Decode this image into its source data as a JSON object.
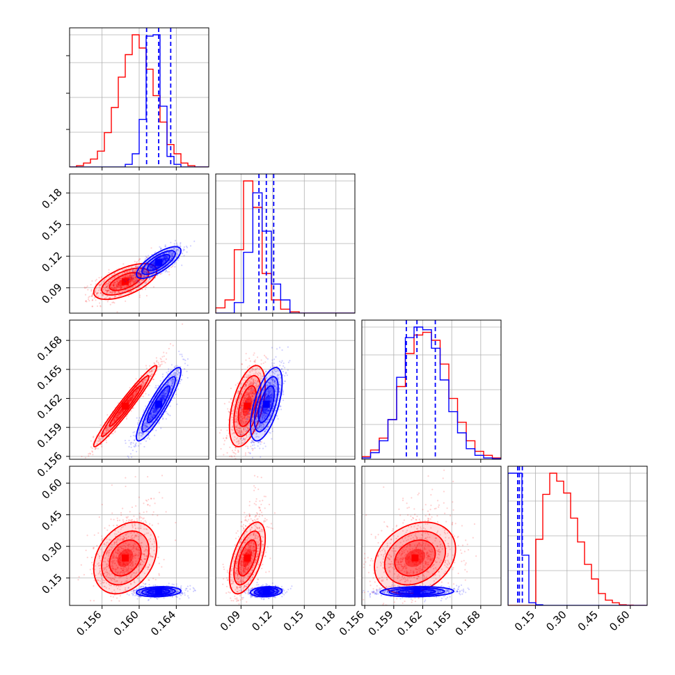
{
  "chart_data": {
    "type": "corner",
    "grid": true,
    "colors": {
      "red": "#ff0000",
      "blue": "#0000ff"
    },
    "parameters": [
      {
        "range": [
          0.1525,
          0.1675
        ],
        "ticks": [
          0.156,
          0.16,
          0.164
        ],
        "tick_labels": [
          "0.156",
          "0.160",
          "0.164"
        ]
      },
      {
        "range": [
          0.066,
          0.198
        ],
        "ticks": [
          0.09,
          0.12,
          0.15,
          0.18
        ],
        "tick_labels": [
          "0.09",
          "0.12",
          "0.15",
          "0.18"
        ]
      },
      {
        "range": [
          0.1557,
          0.1701
        ],
        "ticks": [
          0.156,
          0.159,
          0.162,
          0.165,
          0.168
        ],
        "tick_labels": [
          "0.156",
          "0.159",
          "0.162",
          "0.165",
          "0.168"
        ]
      },
      {
        "range": [
          0.02,
          0.68
        ],
        "ticks": [
          0.15,
          0.3,
          0.45,
          0.6
        ],
        "tick_labels": [
          "0.15",
          "0.30",
          "0.45",
          "0.60"
        ]
      }
    ],
    "series": [
      {
        "color": "red",
        "mean": [
          0.1585,
          0.096,
          0.1612,
          0.245
        ],
        "sd": [
          0.0017,
          0.0085,
          0.0021,
          0.085
        ],
        "corr": [
          [
            1,
            0.6,
            0.97,
            0.3
          ],
          [
            0.6,
            1,
            0.5,
            0.55
          ],
          [
            0.97,
            0.5,
            1,
            0.25
          ],
          [
            0.3,
            0.55,
            0.25,
            1
          ]
        ],
        "histograms": [
          [
            0.1525,
            0.1675,
            [
              0,
              0.01,
              0.03,
              0.06,
              0.12,
              0.26,
              0.45,
              0.68,
              0.85,
              1.0,
              0.9,
              0.74,
              0.54,
              0.34,
              0.17,
              0.1,
              0.03,
              0.01,
              0,
              0
            ]
          ],
          [
            0.066,
            0.198,
            [
              0.04,
              0.1,
              0.48,
              1.0,
              0.8,
              0.3,
              0.1,
              0.03,
              0.01,
              0,
              0,
              0,
              0,
              0,
              0
            ]
          ],
          [
            0.1557,
            0.1701,
            [
              0.02,
              0.07,
              0.16,
              0.3,
              0.55,
              0.8,
              0.94,
              0.96,
              0.9,
              0.72,
              0.46,
              0.28,
              0.14,
              0.06,
              0.03,
              0.01
            ]
          ],
          [
            0.02,
            0.68,
            [
              0,
              0,
              0,
              0,
              0.5,
              0.84,
              1.0,
              0.94,
              0.85,
              0.66,
              0.48,
              0.31,
              0.2,
              0.09,
              0.04,
              0.02,
              0.005,
              0.002,
              0,
              0
            ]
          ]
        ]
      },
      {
        "color": "blue",
        "mean": [
          0.1621,
          0.114,
          0.1614,
          0.085
        ],
        "sd": [
          0.0012,
          0.0075,
          0.0019,
          0.012
        ],
        "corr": [
          [
            1,
            0.75,
            0.9,
            0.15
          ],
          [
            0.75,
            1,
            0.6,
            0.15
          ],
          [
            0.9,
            0.6,
            1,
            0.1
          ],
          [
            0.15,
            0.15,
            0.1,
            1
          ]
        ],
        "histograms": [
          [
            0.1525,
            0.1675,
            [
              0,
              0,
              0,
              0,
              0,
              0,
              0,
              0,
              0.02,
              0.1,
              0.36,
              0.99,
              1.0,
              0.46,
              0.08,
              0.02,
              0,
              0,
              0,
              0
            ]
          ],
          [
            0.066,
            0.198,
            [
              0,
              0,
              0.08,
              0.46,
              0.91,
              0.62,
              0.22,
              0.1,
              0,
              0,
              0,
              0,
              0,
              0,
              0
            ]
          ],
          [
            0.1557,
            0.1701,
            [
              0.01,
              0.05,
              0.14,
              0.3,
              0.62,
              0.92,
              1.0,
              0.98,
              0.84,
              0.6,
              0.36,
              0.2,
              0.08,
              0.03,
              0.01,
              0.005
            ]
          ],
          [
            0.02,
            0.68,
            [
              1.0,
              1.0,
              0.38,
              0.02,
              0.005,
              0,
              0,
              0,
              0,
              0,
              0,
              0,
              0,
              0,
              0,
              0,
              0,
              0,
              0,
              0
            ]
          ]
        ]
      }
    ],
    "quantile_lines": [
      [
        0.1608,
        0.1621,
        0.1634
      ],
      [
        0.107,
        0.114,
        0.121
      ],
      [
        0.1603,
        0.1614,
        0.1633
      ],
      [
        0.066,
        0.074,
        0.088
      ]
    ]
  }
}
